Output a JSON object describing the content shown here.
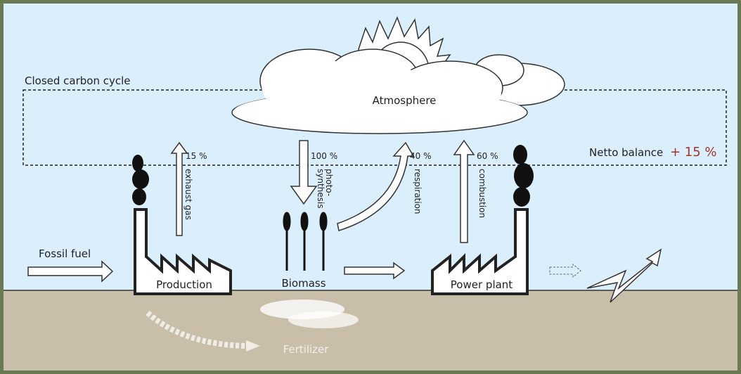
{
  "title": "Closed carbon cycle",
  "atmosphere": "Atmosphere",
  "balance": {
    "label": "Netto balance",
    "value": "+ 15 %"
  },
  "flows": [
    {
      "percent": "15 %",
      "label": "exhaust gas"
    },
    {
      "percent": "100 %",
      "label": "photo-",
      "label2": "synthesis"
    },
    {
      "percent": "40 %",
      "label": "respiration"
    },
    {
      "percent": "60 %",
      "label": "combustion"
    }
  ],
  "nodes": [
    "Fossil fuel",
    "Production",
    "Biomass",
    "Power plant",
    "Fertilizer"
  ]
}
